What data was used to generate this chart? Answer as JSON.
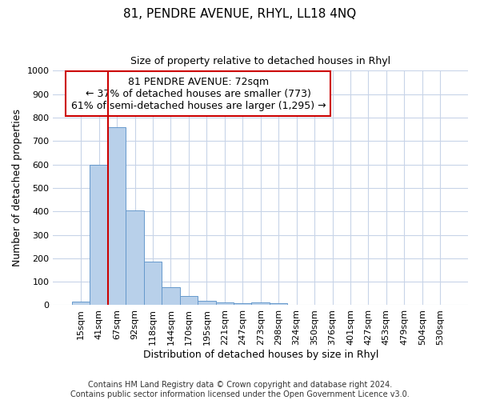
{
  "title1": "81, PENDRE AVENUE, RHYL, LL18 4NQ",
  "title2": "Size of property relative to detached houses in Rhyl",
  "xlabel": "Distribution of detached houses by size in Rhyl",
  "ylabel": "Number of detached properties",
  "footer1": "Contains HM Land Registry data © Crown copyright and database right 2024.",
  "footer2": "Contains public sector information licensed under the Open Government Licence v3.0.",
  "annotation_line1": "81 PENDRE AVENUE: 72sqm",
  "annotation_line2": "← 37% of detached houses are smaller (773)",
  "annotation_line3": "61% of semi-detached houses are larger (1,295) →",
  "bar_color": "#b8d0ea",
  "bar_edge_color": "#6699cc",
  "vline_color": "#cc0000",
  "annotation_box_edgecolor": "#cc0000",
  "background_color": "#ffffff",
  "grid_color": "#c8d4e8",
  "categories": [
    "15sqm",
    "41sqm",
    "67sqm",
    "92sqm",
    "118sqm",
    "144sqm",
    "170sqm",
    "195sqm",
    "221sqm",
    "247sqm",
    "273sqm",
    "298sqm",
    "324sqm",
    "350sqm",
    "376sqm",
    "401sqm",
    "427sqm",
    "453sqm",
    "479sqm",
    "504sqm",
    "530sqm"
  ],
  "values": [
    15,
    600,
    760,
    405,
    185,
    75,
    38,
    18,
    12,
    10,
    13,
    7,
    0,
    0,
    0,
    0,
    0,
    0,
    0,
    0,
    0
  ],
  "vline_x": 1.5,
  "ylim": [
    0,
    1000
  ],
  "yticks": [
    0,
    100,
    200,
    300,
    400,
    500,
    600,
    700,
    800,
    900,
    1000
  ],
  "title1_fontsize": 11,
  "title2_fontsize": 9,
  "ylabel_fontsize": 9,
  "xlabel_fontsize": 9,
  "tick_fontsize": 8,
  "footer_fontsize": 7,
  "annot_fontsize": 9
}
